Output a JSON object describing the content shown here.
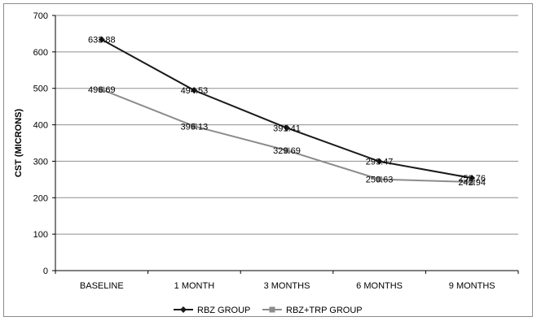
{
  "chart_data": {
    "type": "line",
    "title": "",
    "xlabel": "",
    "ylabel": "CST (MICRONS)",
    "categories": [
      "BASELINE",
      "1 MONTH",
      "3 MONTHS",
      "6 MONTHS",
      "9 MONTHS"
    ],
    "ylim": [
      0,
      700
    ],
    "yticks": [
      0,
      100,
      200,
      300,
      400,
      500,
      600,
      700
    ],
    "grid": true,
    "legend_position": "bottom",
    "series": [
      {
        "name": "RBZ GROUP",
        "values": [
          633.88,
          494.53,
          391.41,
          299.47,
          253.76
        ],
        "labels": [
          "633.88",
          "494.53",
          "391.41",
          "299.47",
          "253.76"
        ],
        "color": "#1a1a1a",
        "marker": "diamond"
      },
      {
        "name": "RBZ+TRP GROUP",
        "values": [
          496.69,
          396.13,
          329.69,
          250.63,
          242.94
        ],
        "labels": [
          "496.69",
          "396.13",
          "329.69",
          "250.63",
          "242.94"
        ],
        "color": "#8c8c8c",
        "marker": "square"
      }
    ]
  }
}
